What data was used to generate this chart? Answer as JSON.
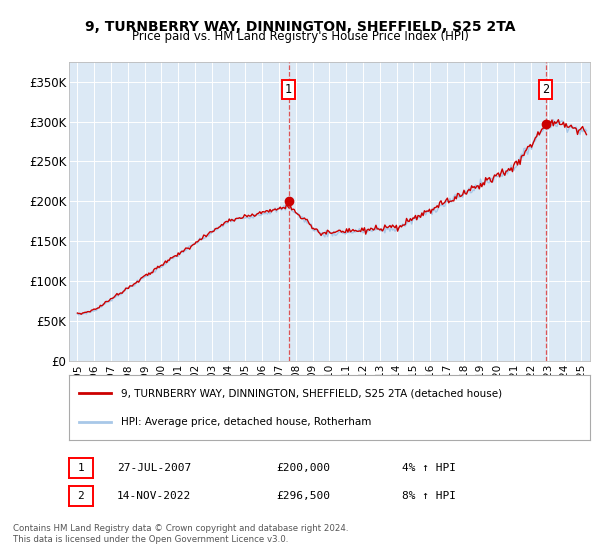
{
  "title": "9, TURNBERRY WAY, DINNINGTON, SHEFFIELD, S25 2TA",
  "subtitle": "Price paid vs. HM Land Registry's House Price Index (HPI)",
  "ylabel_ticks": [
    "£0",
    "£50K",
    "£100K",
    "£150K",
    "£200K",
    "£250K",
    "£300K",
    "£350K"
  ],
  "ytick_values": [
    0,
    50000,
    100000,
    150000,
    200000,
    250000,
    300000,
    350000
  ],
  "ylim": [
    0,
    375000
  ],
  "xlim_start": 1994.5,
  "xlim_end": 2025.5,
  "bg_color": "#dce9f5",
  "hpi_color": "#a8c8e8",
  "price_color": "#cc0000",
  "dashed_color": "#dd4444",
  "t1_x": 2007.57,
  "t1_price": 200000,
  "t2_x": 2022.87,
  "t2_price": 296500,
  "legend_label1": "9, TURNBERRY WAY, DINNINGTON, SHEFFIELD, S25 2TA (detached house)",
  "legend_label2": "HPI: Average price, detached house, Rotherham",
  "row1_date": "27-JUL-2007",
  "row1_price": "£200,000",
  "row1_pct": "4% ↑ HPI",
  "row2_date": "14-NOV-2022",
  "row2_price": "£296,500",
  "row2_pct": "8% ↑ HPI",
  "footer1": "Contains HM Land Registry data © Crown copyright and database right 2024.",
  "footer2": "This data is licensed under the Open Government Licence v3.0."
}
